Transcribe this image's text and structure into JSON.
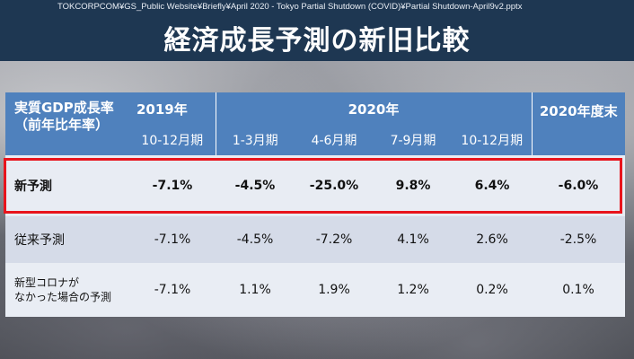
{
  "header": {
    "filepath": "TOKCORPCOM¥GS_Public Website¥Briefly¥April 2020 - Tokyo Partial Shutdown (COVID)¥Partial Shutdown-April9v2.pptx",
    "title": "経済成長予測の新旧比較"
  },
  "table": {
    "metric_label_line1": "実質GDP成長率",
    "metric_label_line2": "（前年比年率）",
    "year_2019": "2019年",
    "year_2020": "2020年",
    "fiscal_2020": "2020年度末",
    "periods": [
      "10-12月期",
      "1-3月期",
      "4-6月期",
      "7-9月期",
      "10-12月期"
    ],
    "rows": [
      {
        "label": "新予測",
        "values": [
          "-7.1%",
          "-4.5%",
          "-25.0%",
          "9.8%",
          "6.4%",
          "-6.0%"
        ]
      },
      {
        "label": "従来予測",
        "values": [
          "-7.1%",
          "-4.5%",
          "-7.2%",
          "4.1%",
          "2.6%",
          "-2.5%"
        ]
      },
      {
        "label_line1": "新型コロナが",
        "label_line2": "なかった場合の予測",
        "values": [
          "-7.1%",
          "1.1%",
          "1.9%",
          "1.2%",
          "0.2%",
          "0.1%"
        ]
      }
    ]
  },
  "colors": {
    "header_bg": "#1e3752",
    "table_header": "#4f81bd",
    "highlight_border": "#e8141c"
  }
}
